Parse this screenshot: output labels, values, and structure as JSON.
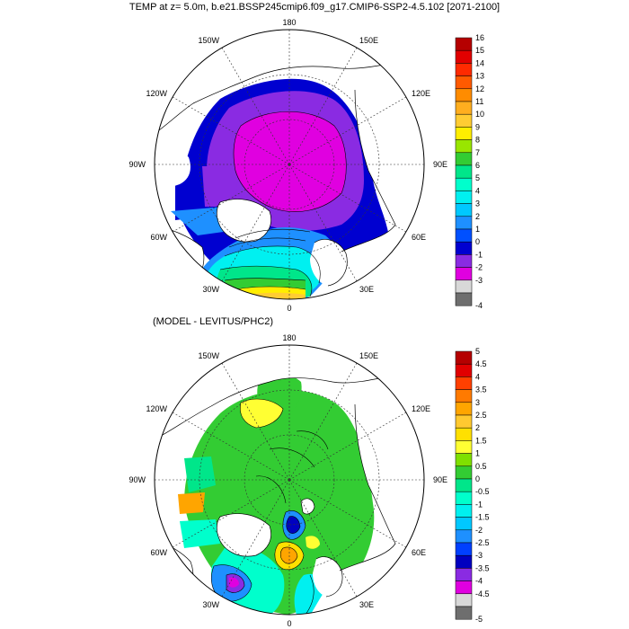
{
  "top_panel": {
    "title": "TEMP at z=   5.0m, b.e21.BSSP245cmip6.f09_g17.CMIP6-SSP2-4.5.102 [2071-2100]",
    "lon_labels": [
      "180",
      "150E",
      "120E",
      "90E",
      "60E",
      "30E",
      "0",
      "30W",
      "60W",
      "90W",
      "120W",
      "150W"
    ],
    "colorbar": {
      "labels": [
        "16",
        "15",
        "14",
        "13",
        "12",
        "11",
        "10",
        "9",
        "8",
        "7",
        "6",
        "5",
        "4",
        "3",
        "2",
        "1",
        "0",
        "-1",
        "-2",
        "-3",
        "-4"
      ],
      "colors": [
        "#b50000",
        "#e10000",
        "#ff2a00",
        "#ff5a00",
        "#ff8c00",
        "#ffae1f",
        "#ffcc33",
        "#ffee00",
        "#99e600",
        "#33cc33",
        "#00e68a",
        "#00ffcc",
        "#00f0f0",
        "#00c8ff",
        "#1e90ff",
        "#0050ff",
        "#0000d0",
        "#8a2be2",
        "#e000e0",
        "#d8d8d8",
        "#6e6e6e"
      ]
    }
  },
  "bottom_panel": {
    "title": "(MODEL - LEVITUS/PHC2)",
    "lon_labels": [
      "180",
      "150E",
      "120E",
      "90E",
      "60E",
      "30E",
      "0",
      "30W",
      "60W",
      "90W",
      "120W",
      "150W"
    ],
    "colorbar": {
      "labels": [
        "5",
        "4.5",
        "4",
        "3.5",
        "3",
        "2.5",
        "2",
        "1.5",
        "1",
        "0.5",
        "0",
        "-0.5",
        "-1",
        "-1.5",
        "-2",
        "-2.5",
        "-3",
        "-3.5",
        "-4",
        "-4.5",
        "-5"
      ],
      "colors": [
        "#b50000",
        "#e10000",
        "#ff4000",
        "#ff7a00",
        "#ffa500",
        "#ffc930",
        "#ffe000",
        "#ffff33",
        "#7fe000",
        "#33cc33",
        "#00e68a",
        "#00ffcc",
        "#00f0f0",
        "#00c8ff",
        "#1e90ff",
        "#0040ff",
        "#0000c0",
        "#8a2be2",
        "#e000e0",
        "#d8d8d8",
        "#6e6e6e"
      ]
    }
  },
  "colors": {
    "land": "#ffffff",
    "coast": "#000000",
    "grid": "#333333"
  }
}
